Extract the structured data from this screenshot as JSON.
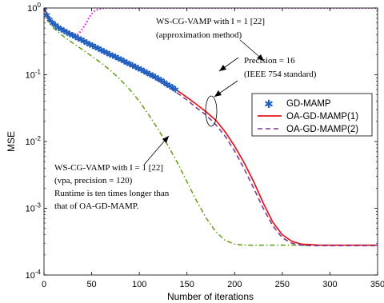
{
  "chart_data": {
    "type": "line",
    "title": "",
    "xlabel": "Number of iterations",
    "ylabel": "MSE",
    "xlim": [
      0,
      350
    ],
    "ylim": [
      0.0001,
      1
    ],
    "yscale": "log",
    "grid": false,
    "legend_position": "right",
    "x_ticks": [
      "0",
      "50",
      "100",
      "150",
      "200",
      "250",
      "300",
      "350"
    ],
    "y_ticks": [
      {
        "base": "10",
        "exp": "0",
        "value": 1
      },
      {
        "base": "10",
        "exp": "-1",
        "value": 0.1
      },
      {
        "base": "10",
        "exp": "-2",
        "value": 0.01
      },
      {
        "base": "10",
        "exp": "-3",
        "value": 0.001
      },
      {
        "base": "10",
        "exp": "-4",
        "value": 0.0001
      }
    ],
    "series": [
      {
        "name": "GD-MAMP",
        "style": "markers",
        "color": "#1f5fbf",
        "marker_glyph": "*",
        "x": [
          0,
          3,
          6,
          9,
          12,
          15,
          18,
          21,
          24,
          27,
          30,
          33,
          36,
          39,
          42,
          45,
          48,
          51,
          54,
          57,
          60,
          63,
          66,
          69,
          72,
          75,
          78,
          81,
          84,
          87,
          90,
          93,
          96,
          99,
          102,
          105,
          108,
          111,
          114,
          117,
          120,
          123,
          126,
          129,
          132,
          135,
          138
        ],
        "y": [
          1,
          0.78,
          0.67,
          0.6,
          0.55,
          0.51,
          0.48,
          0.455,
          0.432,
          0.41,
          0.39,
          0.37,
          0.352,
          0.335,
          0.318,
          0.302,
          0.287,
          0.273,
          0.259,
          0.247,
          0.235,
          0.224,
          0.213,
          0.203,
          0.194,
          0.185,
          0.176,
          0.168,
          0.16,
          0.152,
          0.145,
          0.138,
          0.131,
          0.125,
          0.119,
          0.113,
          0.107,
          0.102,
          0.097,
          0.092,
          0.087,
          0.082,
          0.077,
          0.072,
          0.068,
          0.064,
          0.06
        ]
      },
      {
        "name": "OA-GD-MAMP(1)",
        "style": "solid",
        "color": "#e8141c",
        "x": [
          0,
          5,
          10,
          20,
          30,
          40,
          50,
          60,
          70,
          80,
          90,
          100,
          110,
          120,
          130,
          140,
          150,
          160,
          170,
          180,
          190,
          200,
          210,
          220,
          230,
          240,
          250,
          260,
          270,
          280,
          290,
          300,
          310,
          320,
          350
        ],
        "y": [
          1,
          0.7,
          0.58,
          0.47,
          0.39,
          0.33,
          0.28,
          0.235,
          0.2,
          0.17,
          0.145,
          0.123,
          0.103,
          0.086,
          0.071,
          0.058,
          0.046,
          0.036,
          0.028,
          0.021,
          0.014,
          0.0085,
          0.0048,
          0.0025,
          0.0012,
          0.00062,
          0.0004,
          0.00032,
          0.00029,
          0.000285,
          0.00028,
          0.00028,
          0.00028,
          0.00028,
          0.00028
        ]
      },
      {
        "name": "OA-GD-MAMP(2)",
        "style": "dashed",
        "color": "#7b3a96",
        "x": [
          0,
          5,
          10,
          20,
          30,
          40,
          50,
          60,
          70,
          80,
          90,
          100,
          110,
          120,
          130,
          140,
          150,
          160,
          170,
          180,
          190,
          200,
          210,
          220,
          230,
          240,
          250,
          260,
          270,
          280,
          290,
          300,
          310,
          320,
          350
        ],
        "y": [
          1,
          0.7,
          0.58,
          0.465,
          0.385,
          0.325,
          0.275,
          0.23,
          0.195,
          0.165,
          0.14,
          0.118,
          0.098,
          0.081,
          0.066,
          0.053,
          0.042,
          0.032,
          0.025,
          0.018,
          0.012,
          0.0072,
          0.0039,
          0.002,
          0.001,
          0.00055,
          0.00036,
          0.0003,
          0.00028,
          0.000275,
          0.000275,
          0.000275,
          0.000275,
          0.000275,
          0.000275
        ]
      },
      {
        "name": "WS-CG-VAMP (vpa, precision = 120)",
        "style": "dashdot",
        "color": "#6aa121",
        "x": [
          0,
          5,
          10,
          20,
          30,
          40,
          50,
          60,
          70,
          80,
          90,
          100,
          110,
          120,
          130,
          140,
          150,
          160,
          170,
          180,
          190,
          200,
          210,
          220,
          230,
          240,
          250,
          260,
          270,
          280,
          290,
          300,
          320,
          350
        ],
        "y": [
          1,
          0.62,
          0.5,
          0.38,
          0.3,
          0.24,
          0.19,
          0.15,
          0.115,
          0.085,
          0.06,
          0.04,
          0.025,
          0.015,
          0.0087,
          0.0048,
          0.0025,
          0.0013,
          0.00072,
          0.00045,
          0.00033,
          0.00029,
          0.00028,
          0.00028,
          0.00028,
          0.00028,
          0.00028,
          0.00028,
          0.00028,
          0.00028,
          0.00028,
          0.00028,
          0.00028,
          0.00028
        ]
      },
      {
        "name": "WS-CG-VAMP (approximation method)",
        "style": "dotted",
        "color": "#e816e8",
        "x": [
          0,
          5,
          10,
          15,
          20,
          25,
          30,
          35,
          38,
          41,
          43,
          45,
          47,
          49,
          51,
          53,
          56,
          60,
          65,
          70,
          80,
          100,
          150,
          200,
          250,
          300,
          350
        ],
        "y": [
          1,
          0.72,
          0.6,
          0.53,
          0.47,
          0.43,
          0.4,
          0.4,
          0.44,
          0.5,
          0.55,
          0.62,
          0.7,
          0.78,
          0.85,
          0.9,
          0.95,
          0.98,
          1,
          1,
          1,
          1,
          1,
          1,
          1,
          1,
          1
        ]
      }
    ],
    "annotations": [
      {
        "id": "approx",
        "lines": [
          "WS-CG-VAMP with I = 1 [22]",
          "(approximation method)"
        ]
      },
      {
        "id": "precision16",
        "lines": [
          "Precision = 16",
          "(IEEE 754 standard)"
        ]
      },
      {
        "id": "vpa",
        "lines": [
          "WS-CG-VAMP with I = 1 [22]",
          "(vpa, precision = 120)",
          "Runtime is ten times longer than",
          "that of OA-GD-MAMP."
        ]
      }
    ],
    "legend": [
      {
        "label": "GD-MAMP",
        "series": 0
      },
      {
        "label": "OA-GD-MAMP(1)",
        "series": 1
      },
      {
        "label": "OA-GD-MAMP(2)",
        "series": 2
      }
    ]
  }
}
